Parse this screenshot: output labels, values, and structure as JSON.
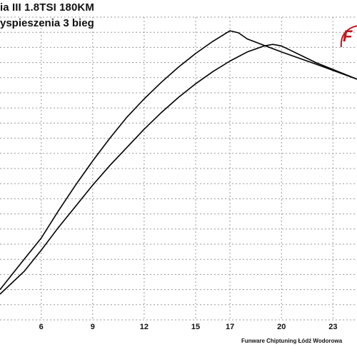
{
  "header": {
    "title": "ia III 1.8TSI 180KM",
    "subtitle": "yspieszenia 3 bieg"
  },
  "footer": {
    "credit": "Funware Chiptuning Łódź Wodorowa"
  },
  "logo": {
    "text": "F",
    "color": "#c0161e"
  },
  "chart_data": {
    "type": "line",
    "title": "",
    "xlabel": "",
    "ylabel": "",
    "xlim": [
      3.6,
      24.4
    ],
    "ylim": [
      0,
      10
    ],
    "x_ticks": [
      6,
      9,
      12,
      15,
      17,
      20,
      23
    ],
    "grid": true,
    "legend": "none",
    "series": [
      {
        "color": "#000000",
        "points": [
          [
            3.6,
            1.0
          ],
          [
            5,
            2.0
          ],
          [
            6,
            2.7
          ],
          [
            7,
            3.6
          ],
          [
            8,
            4.45
          ],
          [
            9,
            5.25
          ],
          [
            10,
            6.0
          ],
          [
            11,
            6.7
          ],
          [
            12,
            7.3
          ],
          [
            13,
            7.85
          ],
          [
            14,
            8.35
          ],
          [
            15,
            8.8
          ],
          [
            16,
            9.2
          ],
          [
            17,
            9.55
          ],
          [
            17.5,
            9.48
          ],
          [
            18,
            9.28
          ],
          [
            20,
            8.85
          ],
          [
            22,
            8.45
          ],
          [
            24.4,
            7.95
          ]
        ]
      },
      {
        "color": "#000000",
        "points": [
          [
            3.6,
            0.85
          ],
          [
            5,
            1.6
          ],
          [
            6,
            2.3
          ],
          [
            7,
            3.05
          ],
          [
            8,
            3.75
          ],
          [
            9,
            4.45
          ],
          [
            10,
            5.1
          ],
          [
            11,
            5.7
          ],
          [
            12,
            6.3
          ],
          [
            13,
            6.85
          ],
          [
            14,
            7.35
          ],
          [
            15,
            7.8
          ],
          [
            16,
            8.2
          ],
          [
            17,
            8.55
          ],
          [
            18,
            8.85
          ],
          [
            19,
            9.05
          ],
          [
            19.5,
            9.1
          ],
          [
            20,
            9.05
          ],
          [
            22,
            8.5
          ],
          [
            24.4,
            7.95
          ]
        ]
      }
    ]
  }
}
